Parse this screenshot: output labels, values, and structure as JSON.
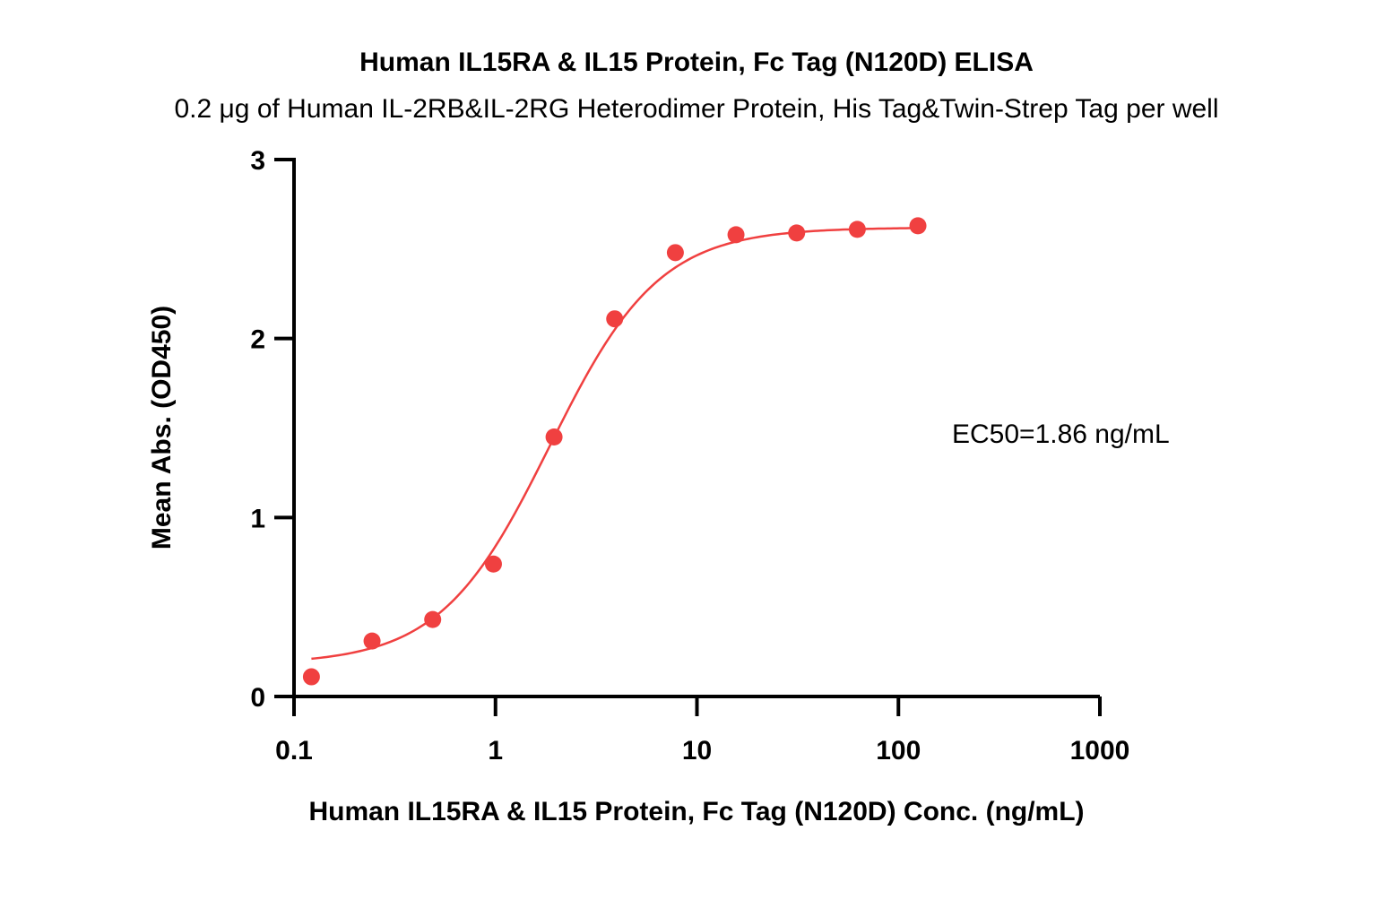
{
  "chart_data": {
    "type": "scatter",
    "title": "Human IL15RA & IL15 Protein, Fc Tag (N120D) ELISA",
    "subtitle": "0.2 μg of Human IL-2RB&IL-2RG Heterodimer Protein, His Tag&Twin-Strep Tag per well",
    "xlabel": "Human IL15RA & IL15 Protein, Fc Tag (N120D) Conc. (ng/mL)",
    "ylabel": "Mean Abs. (OD450)",
    "x_scale": "log",
    "xlim": [
      0.1,
      1000
    ],
    "ylim": [
      0,
      3
    ],
    "x_ticks": [
      0.1,
      1,
      10,
      100,
      1000
    ],
    "x_tick_labels": [
      "0.1",
      "1",
      "10",
      "100",
      "1000"
    ],
    "y_ticks": [
      0,
      1,
      2,
      3
    ],
    "y_tick_labels": [
      "0",
      "1",
      "2",
      "3"
    ],
    "grid": false,
    "annotation": "EC50=1.86 ng/mL",
    "series": [
      {
        "color": "#f04040",
        "x": [
          0.122,
          0.244,
          0.488,
          0.977,
          1.953,
          3.906,
          7.813,
          15.625,
          31.25,
          62.5,
          125
        ],
        "values": [
          0.11,
          0.31,
          0.43,
          0.74,
          1.45,
          2.11,
          2.48,
          2.58,
          2.59,
          2.61,
          2.63
        ]
      }
    ],
    "fit": {
      "model": "4PL",
      "bottom": 0.18,
      "top": 2.62,
      "ec50": 1.86,
      "hill": 1.6
    }
  }
}
